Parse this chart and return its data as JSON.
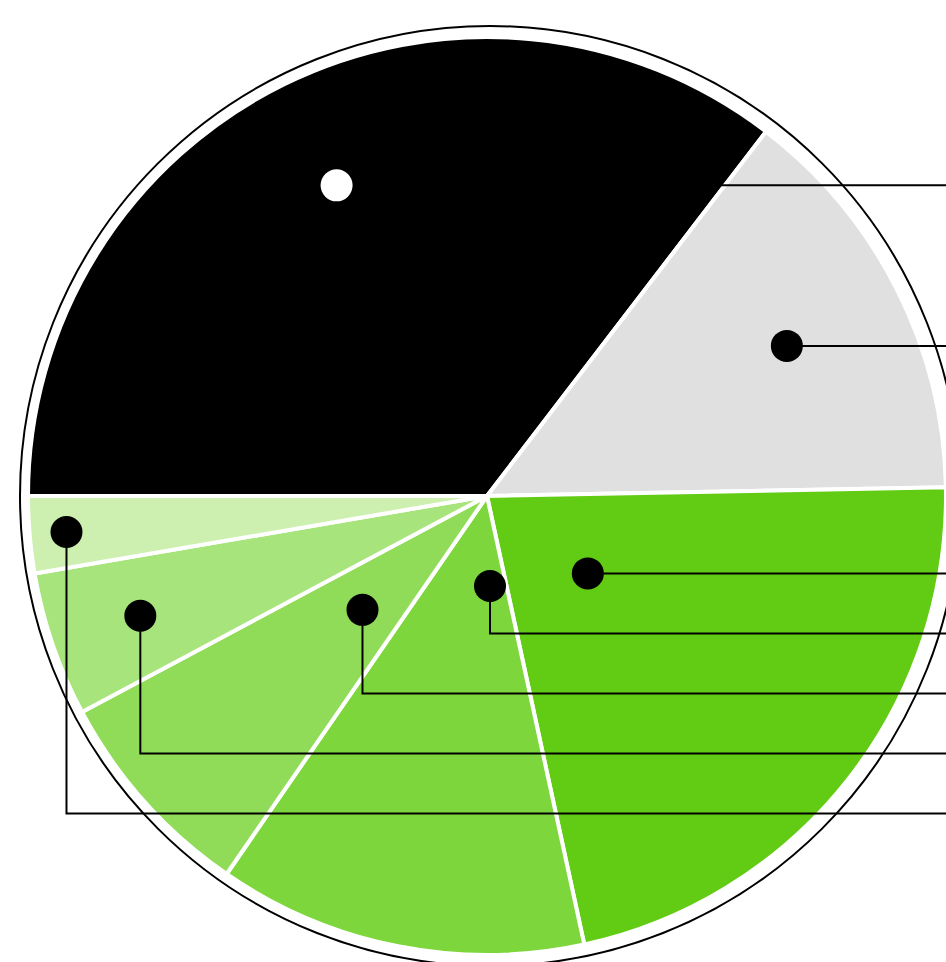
{
  "chart_data": {
    "type": "pie",
    "categories": [
      null,
      null,
      null,
      null,
      null,
      null,
      null
    ],
    "values": [
      35.4,
      14.3,
      21.9,
      13.0,
      7.6,
      5.1,
      2.7
    ],
    "colors": [
      "#000000",
      "#e0e0e0",
      "#62cc14",
      "#7dd63c",
      "#90dc58",
      "#a8e47c",
      "#cdf0b0"
    ]
  }
}
